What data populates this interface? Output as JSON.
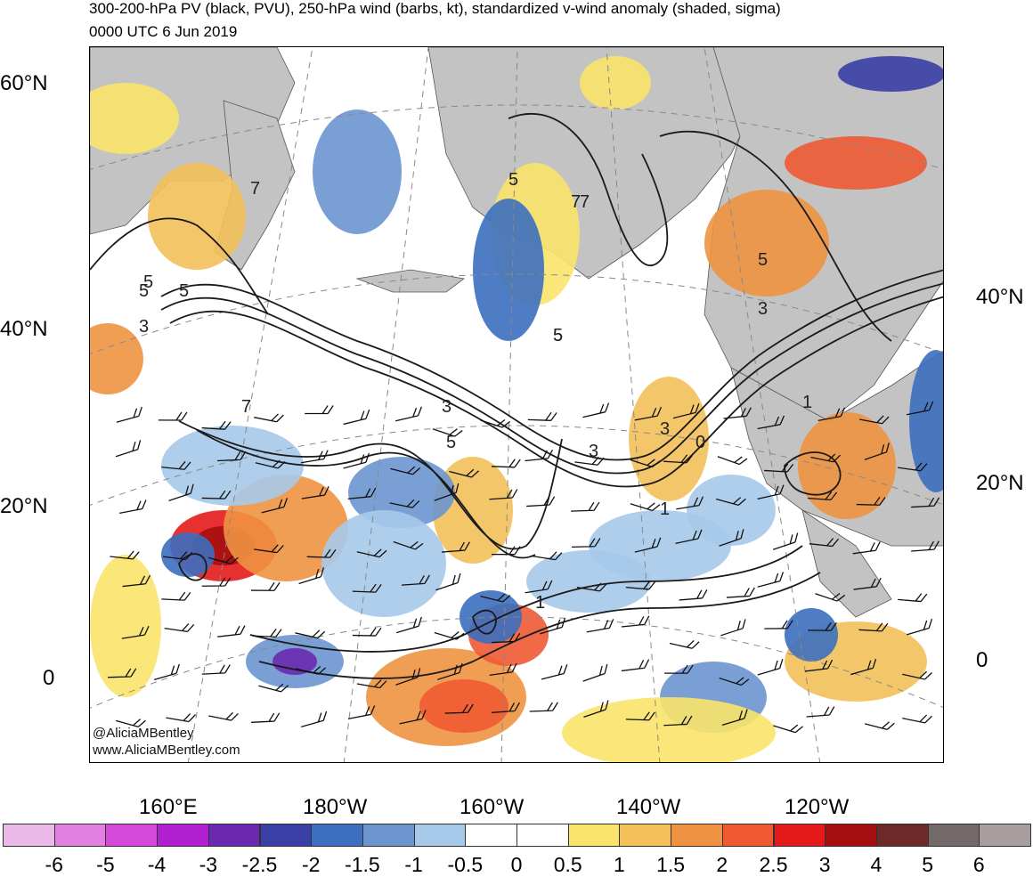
{
  "header": {
    "title": "300-200-hPa PV (black, PVU), 250-hPa wind (barbs, kt), standardized v-wind anomaly (shaded, sigma)",
    "valid_time": "0000 UTC 6 Jun 2019"
  },
  "axes": {
    "left_lat": [
      "60°N",
      "40°N",
      "20°N",
      "0"
    ],
    "right_lat": [
      "40°N",
      "20°N",
      "0"
    ],
    "bottom_lon": [
      "160°E",
      "180°W",
      "160°W",
      "140°W",
      "120°W"
    ]
  },
  "credits": [
    "@AliciaMBentley",
    "www.AliciaMBentley.com"
  ],
  "colorbar": {
    "colors": [
      "#ebb9e8",
      "#e47fe2",
      "#d54ad8",
      "#b01fd0",
      "#6a29b0",
      "#3a3fa6",
      "#3c6fbf",
      "#6c95cf",
      "#a6c9ea",
      "#ffffff",
      "#ffffff",
      "#fae36a",
      "#f3c05a",
      "#ef9342",
      "#ef5a33",
      "#e41a1a",
      "#a50f0f",
      "#6e2a28",
      "#736969",
      "#a89e9e"
    ],
    "labels": [
      "-6",
      "-5",
      "-4",
      "-3",
      "-2.5",
      "-2",
      "-1.5",
      "-1",
      "-0.5",
      "0",
      "0.5",
      "1",
      "1.5",
      "2",
      "2.5",
      "3",
      "4",
      "5",
      "6"
    ]
  },
  "pv_contour_labels": [
    "5",
    "7",
    "5",
    "5",
    "3",
    "7",
    "5",
    "7",
    "5",
    "5",
    "3",
    "3",
    "5",
    "3",
    "0",
    "1",
    "1",
    "3",
    "7",
    "5",
    "1"
  ],
  "map_colors": {
    "land": "#c3c3c3",
    "pv_contour": "#1a1a1a",
    "grid": "#888888"
  }
}
